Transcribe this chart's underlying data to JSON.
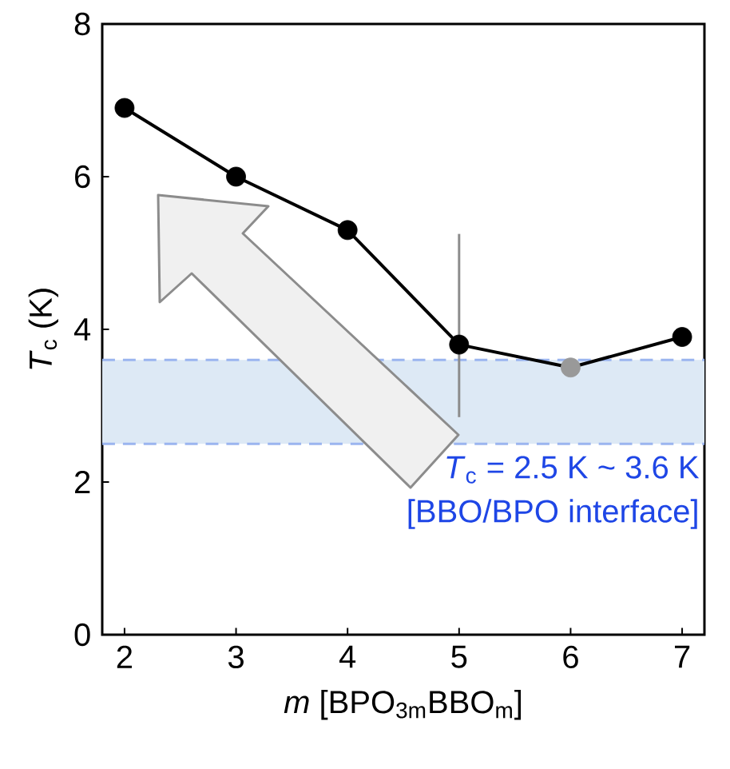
{
  "chart_data": {
    "type": "line",
    "x": [
      2,
      3,
      4,
      5,
      6,
      7
    ],
    "series": [
      {
        "color": "#000000",
        "colors": [
          "#000000",
          "#000000",
          "#000000",
          "#000000",
          "#999999",
          "#000000"
        ],
        "values": [
          6.9,
          6.0,
          5.3,
          3.8,
          3.5,
          3.9
        ],
        "errors": [
          null,
          null,
          null,
          [
            2.85,
            5.25
          ],
          null,
          null
        ]
      }
    ],
    "marker": "circle",
    "xlabel": "*m* [BPO$_{3m}$BBO$_{m}$]",
    "ylabel": "*T*$_{c}$ (K)",
    "xlim": [
      1.8,
      7.2
    ],
    "xticks": [
      2,
      3,
      4,
      5,
      6,
      7
    ],
    "ylim": [
      0,
      8
    ],
    "yticks": [
      0,
      2,
      4,
      6,
      8
    ],
    "bands": [
      {
        "axis": "y",
        "from": 2.5,
        "to": 3.6,
        "color": "#dde9f5"
      }
    ],
    "ref_lines": [
      {
        "axis": "y",
        "value": 2.5,
        "color": "#9bb5ef",
        "line_style": "dashed"
      },
      {
        "axis": "y",
        "value": 3.6,
        "color": "#9bb5ef",
        "line_style": "dashed"
      }
    ],
    "annotations": [
      "*T*$_{c}$ = 2.5 K ~ 3.6 K",
      "[BBO/BPO interface]"
    ],
    "grid": false
  }
}
